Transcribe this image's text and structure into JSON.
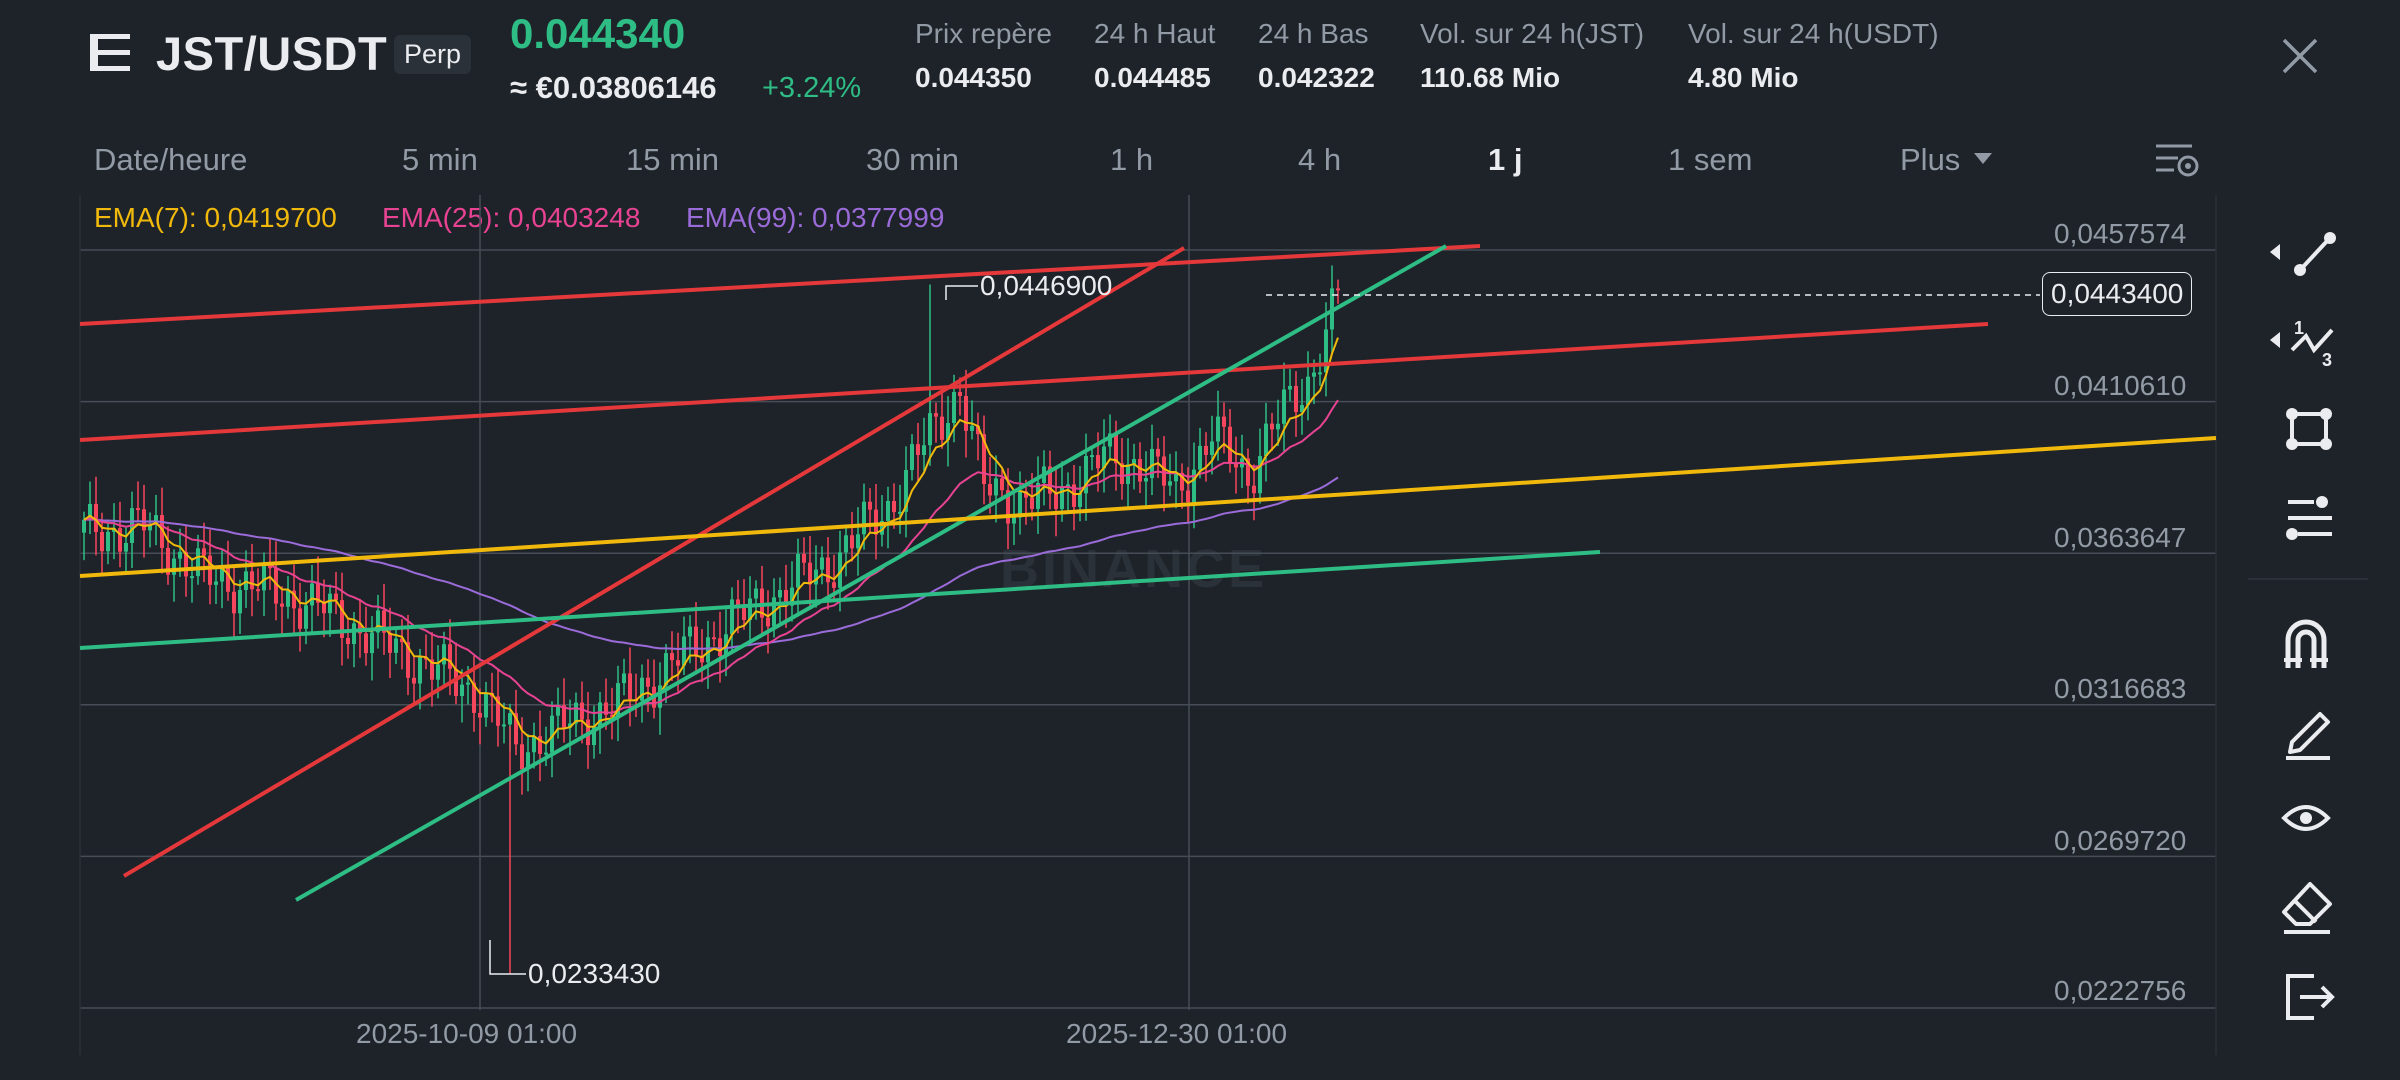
{
  "header": {
    "symbol": "JST/USDT",
    "contract_type": "Perp",
    "last_price": "0.044340",
    "fiat_price": "≈ €0.03806146",
    "change_pct": "+3.24%",
    "stats": [
      {
        "label": "Prix repère",
        "value": "0.044350"
      },
      {
        "label": "24 h Haut",
        "value": "0.044485"
      },
      {
        "label": "24 h Bas",
        "value": "0.042322"
      },
      {
        "label": "Vol. sur 24 h(JST)",
        "value": "110.68 Mio"
      },
      {
        "label": "Vol. sur 24 h(USDT)",
        "value": "4.80 Mio"
      }
    ]
  },
  "timeframes": {
    "items": [
      "Date/heure",
      "5 min",
      "15 min",
      "30 min",
      "1 h",
      "4 h",
      "1 j",
      "1 sem",
      "Plus"
    ],
    "active": "1 j"
  },
  "indicators": {
    "ema7": "EMA(7): 0,0419700",
    "ema25": "EMA(25): 0,0403248",
    "ema99": "EMA(99): 0,0377999",
    "colors": {
      "ema7": "#f0b90b",
      "ema25": "#e84393",
      "ema99": "#9b6bd9"
    }
  },
  "chart": {
    "price_axis": [
      "0,0457574",
      "0,0410610",
      "0,0363647",
      "0,0316683",
      "0,0269720",
      "0,0222756"
    ],
    "current_price": "0,0443400",
    "high_marker": "0,0446900",
    "low_marker": "0,0233430",
    "date_axis": [
      "2025-10-09 01:00",
      "2025-12-30 01:00"
    ],
    "watermark": "BINANCE",
    "colors": {
      "up": "#2ebd85",
      "down": "#f6465d",
      "trend_red": "#e5383b",
      "trend_green": "#2ebd85",
      "trend_yellow": "#f0b90b",
      "grid": "#474d57"
    }
  },
  "tools": [
    "trendline-icon",
    "fibonacci-icon",
    "rectangle-icon",
    "indicator-settings-icon",
    "magnet-icon",
    "pencil-icon",
    "eye-icon",
    "eraser-icon",
    "exit-icon"
  ]
}
